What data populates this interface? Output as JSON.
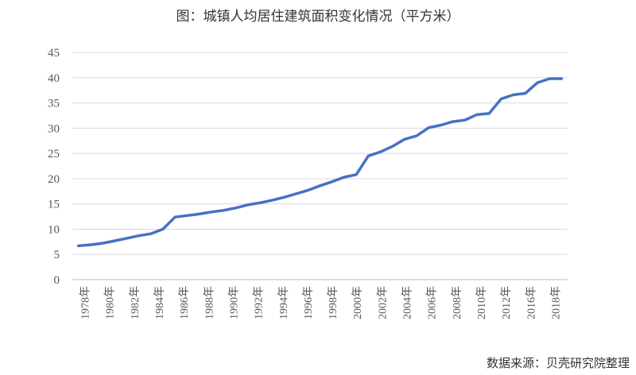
{
  "chart_data": {
    "type": "line",
    "title": "图：城镇人均居住建筑面积变化情况（平方米）",
    "source": "数据来源：贝壳研究院整理",
    "xlabel": "",
    "ylabel": "",
    "ylim": [
      0,
      45
    ],
    "yticks": [
      0,
      5,
      10,
      15,
      20,
      25,
      30,
      35,
      40,
      45
    ],
    "grid": true,
    "legend": "none",
    "line_color": "#4472C4",
    "x_tick_labels": [
      "1978年",
      "1980年",
      "1982年",
      "1984年",
      "1986年",
      "1988年",
      "1990年",
      "1992年",
      "1994年",
      "1996年",
      "1998年",
      "2000年",
      "2002年",
      "2004年",
      "2006年",
      "2008年",
      "2010年",
      "2012年",
      "2016年",
      "2018年"
    ],
    "series": [
      {
        "x": [
          "1978",
          "1979",
          "1980",
          "1981",
          "1982",
          "1983",
          "1984",
          "1985",
          "1986",
          "1987",
          "1988",
          "1989",
          "1990",
          "1991",
          "1992",
          "1993",
          "1994",
          "1995",
          "1996",
          "1997",
          "1998",
          "1999",
          "2000",
          "2001",
          "2002",
          "2003",
          "2004",
          "2005",
          "2006",
          "2007",
          "2008",
          "2009",
          "2010",
          "2011",
          "2012",
          "2013",
          "2014",
          "2015",
          "2016",
          "2017",
          "2018"
        ],
        "values": [
          6.7,
          6.9,
          7.2,
          7.7,
          8.2,
          8.7,
          9.1,
          10.0,
          12.4,
          12.7,
          13.0,
          13.4,
          13.7,
          14.2,
          14.8,
          15.2,
          15.7,
          16.3,
          17.0,
          17.7,
          18.6,
          19.4,
          20.3,
          20.8,
          24.5,
          25.3,
          26.4,
          27.8,
          28.5,
          30.1,
          30.6,
          31.3,
          31.6,
          32.7,
          32.9,
          35.8,
          36.6,
          36.9,
          39.0,
          39.8,
          39.8
        ]
      }
    ]
  }
}
